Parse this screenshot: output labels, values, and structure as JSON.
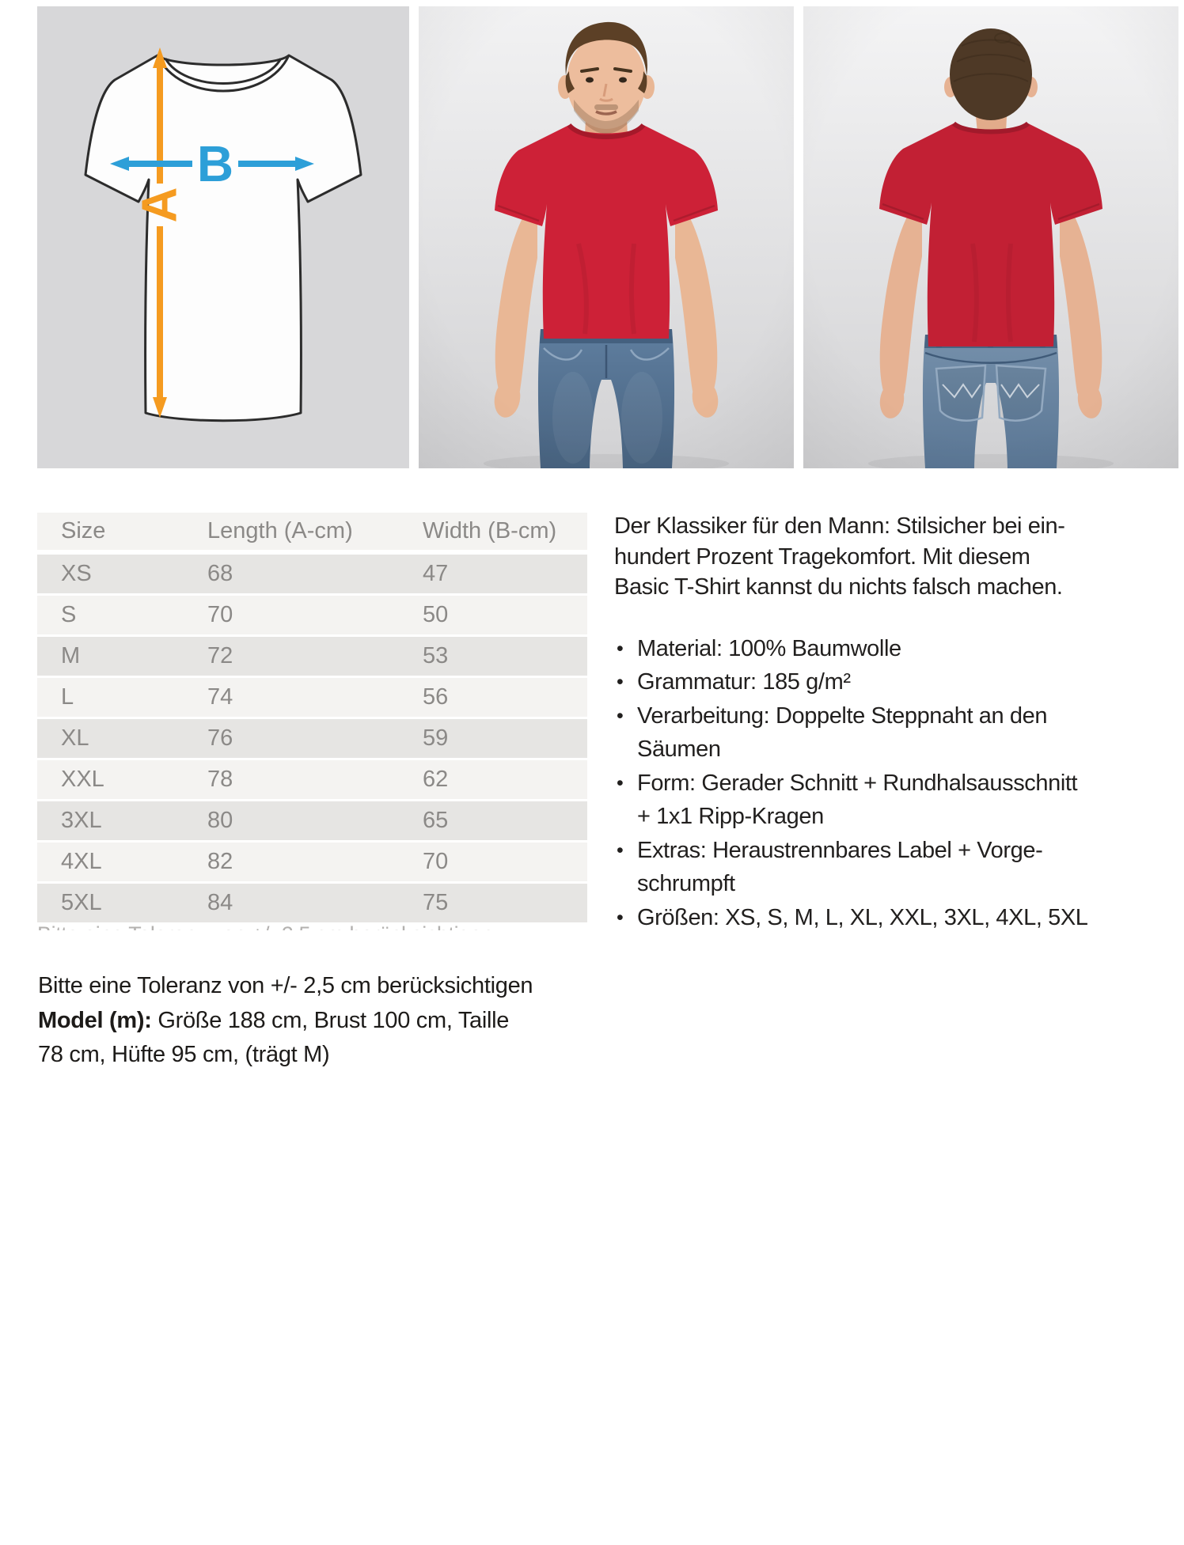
{
  "images": {
    "size_diagram": {
      "label_a": "A",
      "label_b": "B",
      "colors": {
        "background": "#d7d7d9",
        "shirt_fill": "#fdfdfd",
        "outline": "#2c2c2c",
        "arrow_a_orange": "#f59b20",
        "arrow_b_blue": "#2d9fd8"
      }
    },
    "model_front": {
      "shirt_color": "#cd2137",
      "jeans_color": "#5f7e9f"
    },
    "model_back": {
      "shirt_color": "#c22034",
      "jeans_color": "#7590ab"
    }
  },
  "size_table": {
    "headers": [
      "Size",
      "Length (A-cm)",
      "Width (B-cm)"
    ],
    "rows": [
      [
        "XS",
        "68",
        "47"
      ],
      [
        "S",
        "70",
        "50"
      ],
      [
        "M",
        "72",
        "53"
      ],
      [
        "L",
        "74",
        "56"
      ],
      [
        "XL",
        "76",
        "59"
      ],
      [
        "XXL",
        "78",
        "62"
      ],
      [
        "3XL",
        "80",
        "65"
      ],
      [
        "4XL",
        "82",
        "70"
      ],
      [
        "5XL",
        "84",
        "75"
      ]
    ],
    "colors": {
      "header_bg": "#f4f3f1",
      "row_odd_bg": "#e6e5e3",
      "row_even_bg": "#f4f3f1",
      "text": "#8b8987"
    }
  },
  "description": {
    "intro_lines": [
      "Der Klassiker für den Mann: Stilsicher bei ein-",
      "hundert Prozent Tragekomfort. Mit diesem",
      "Basic T-Shirt kannst du nichts falsch machen."
    ],
    "bullet_char": "•",
    "bullets": [
      {
        "lines": [
          "Material: 100% Baumwolle"
        ]
      },
      {
        "lines": [
          "Grammatur: 185 g/m²"
        ]
      },
      {
        "lines": [
          "Verarbeitung: Doppelte Steppnaht an den",
          "Säumen"
        ]
      },
      {
        "lines": [
          "Form: Gerader Schnitt + Rundhalsausschnitt",
          "+ 1x1 Ripp-Kragen"
        ]
      },
      {
        "lines": [
          "Extras: Heraustrennbares Label + Vorge-",
          "schrumpft"
        ]
      },
      {
        "lines": [
          "Größen: XS, S, M, L, XL, XXL, 3XL, 4XL, 5XL"
        ]
      }
    ]
  },
  "footer": {
    "tolerance_line": "Bitte eine Toleranz von +/- 2,5 cm berücksichtigen",
    "model_label": "Model (m):",
    "model_line1_rest": " Größe 188 cm, Brust 100 cm, Taille",
    "model_line2": "78 cm, Hüfte 95 cm, (trägt M)"
  }
}
